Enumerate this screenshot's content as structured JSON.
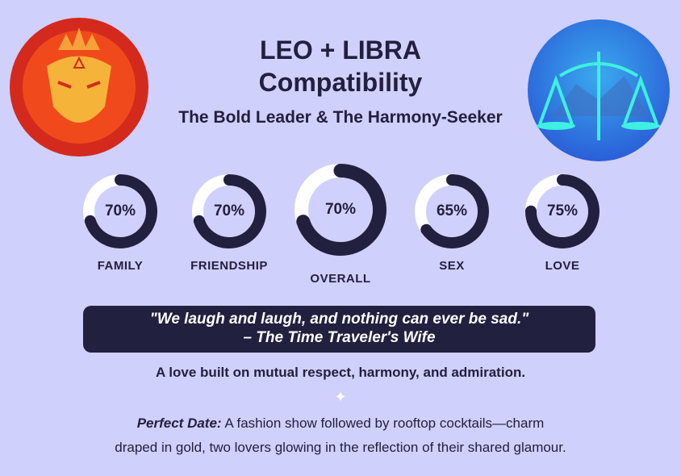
{
  "header": {
    "title_line1": "LEO + LIBRA",
    "title_line2": "Compatibility",
    "subtitle": "The Bold Leader & The Harmony-Seeker"
  },
  "signs": {
    "left": "leo-emblem",
    "right": "libra-emblem"
  },
  "colors": {
    "background": "#d0d0fc",
    "navy": "#22203f",
    "track": "#ffffff",
    "leo": "#e8321e",
    "libra": "#2f86e6"
  },
  "scores": [
    {
      "label": "FAMILY",
      "percent": 70,
      "display": "70%"
    },
    {
      "label": "FRIENDSHIP",
      "percent": 70,
      "display": "70%"
    },
    {
      "label": "OVERALL",
      "percent": 70,
      "display": "70%"
    },
    {
      "label": "SEX",
      "percent": 65,
      "display": "65%"
    },
    {
      "label": "LOVE",
      "percent": 75,
      "display": "75%"
    }
  ],
  "quote": {
    "text": "\"We laugh and laugh, and nothing can ever be sad.\"",
    "source": "– The Time Traveler's Wife"
  },
  "summary": "A love built on mutual respect, harmony, and admiration.",
  "perfect_date": {
    "label": "Perfect Date:",
    "text": " A fashion show followed by rooftop cocktails—charm",
    "text2": "draped in gold, two lovers glowing in the reflection of their shared glamour."
  }
}
